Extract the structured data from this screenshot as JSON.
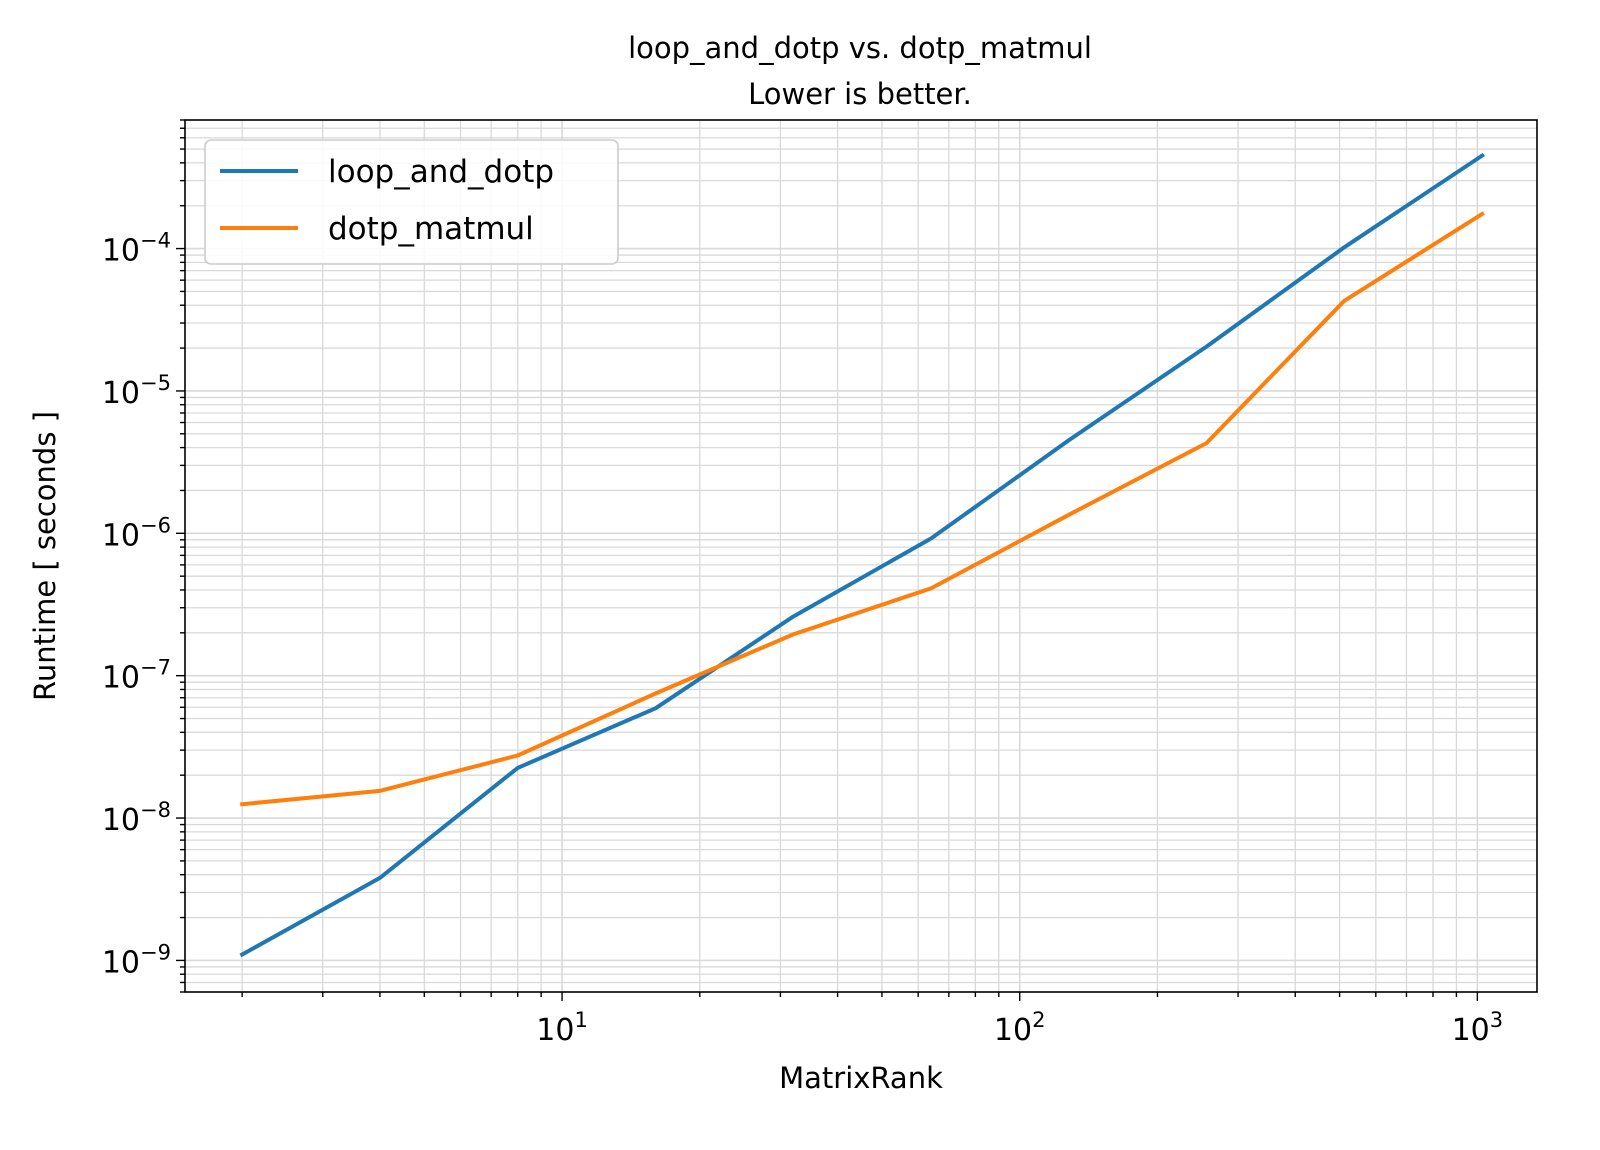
{
  "chart_data": {
    "type": "line",
    "title": "loop_and_dotp vs. dotp_matmul",
    "subtitle": "Lower is better.",
    "xlabel": "MatrixRank",
    "ylabel": "Runtime [ seconds ]",
    "xscale": "log",
    "yscale": "log",
    "xlim": [
      1.5,
      1350
    ],
    "ylim": [
      6e-10,
      0.0008
    ],
    "grid": true,
    "grid_minor": true,
    "legend_position": "upper-left",
    "x_major_ticks": [
      {
        "value": 10,
        "base": "10",
        "exp": "1"
      },
      {
        "value": 100,
        "base": "10",
        "exp": "2"
      },
      {
        "value": 1000,
        "base": "10",
        "exp": "3"
      }
    ],
    "y_major_ticks": [
      {
        "value": 1e-09,
        "base": "10",
        "exp": "−9"
      },
      {
        "value": 1e-08,
        "base": "10",
        "exp": "−8"
      },
      {
        "value": 1e-07,
        "base": "10",
        "exp": "−7"
      },
      {
        "value": 1e-06,
        "base": "10",
        "exp": "−6"
      },
      {
        "value": 1e-05,
        "base": "10",
        "exp": "−5"
      },
      {
        "value": 0.0001,
        "base": "10",
        "exp": "−4"
      }
    ],
    "x": [
      2,
      4,
      8,
      16,
      32,
      64,
      128,
      256,
      512,
      1024
    ],
    "series": [
      {
        "name": "loop_and_dotp",
        "color": "#1f77b4",
        "values": [
          1.1e-09,
          3.8e-09,
          2.25e-08,
          5.9e-08,
          2.6e-07,
          9.2e-07,
          4.5e-06,
          2.05e-05,
          0.000102,
          0.00045
        ]
      },
      {
        "name": "dotp_matmul",
        "color": "#ff7f0e",
        "values": [
          1.25e-08,
          1.55e-08,
          2.75e-08,
          7.5e-08,
          1.95e-07,
          4.1e-07,
          1.35e-06,
          4.3e-06,
          4.3e-05,
          0.000175
        ]
      }
    ]
  }
}
